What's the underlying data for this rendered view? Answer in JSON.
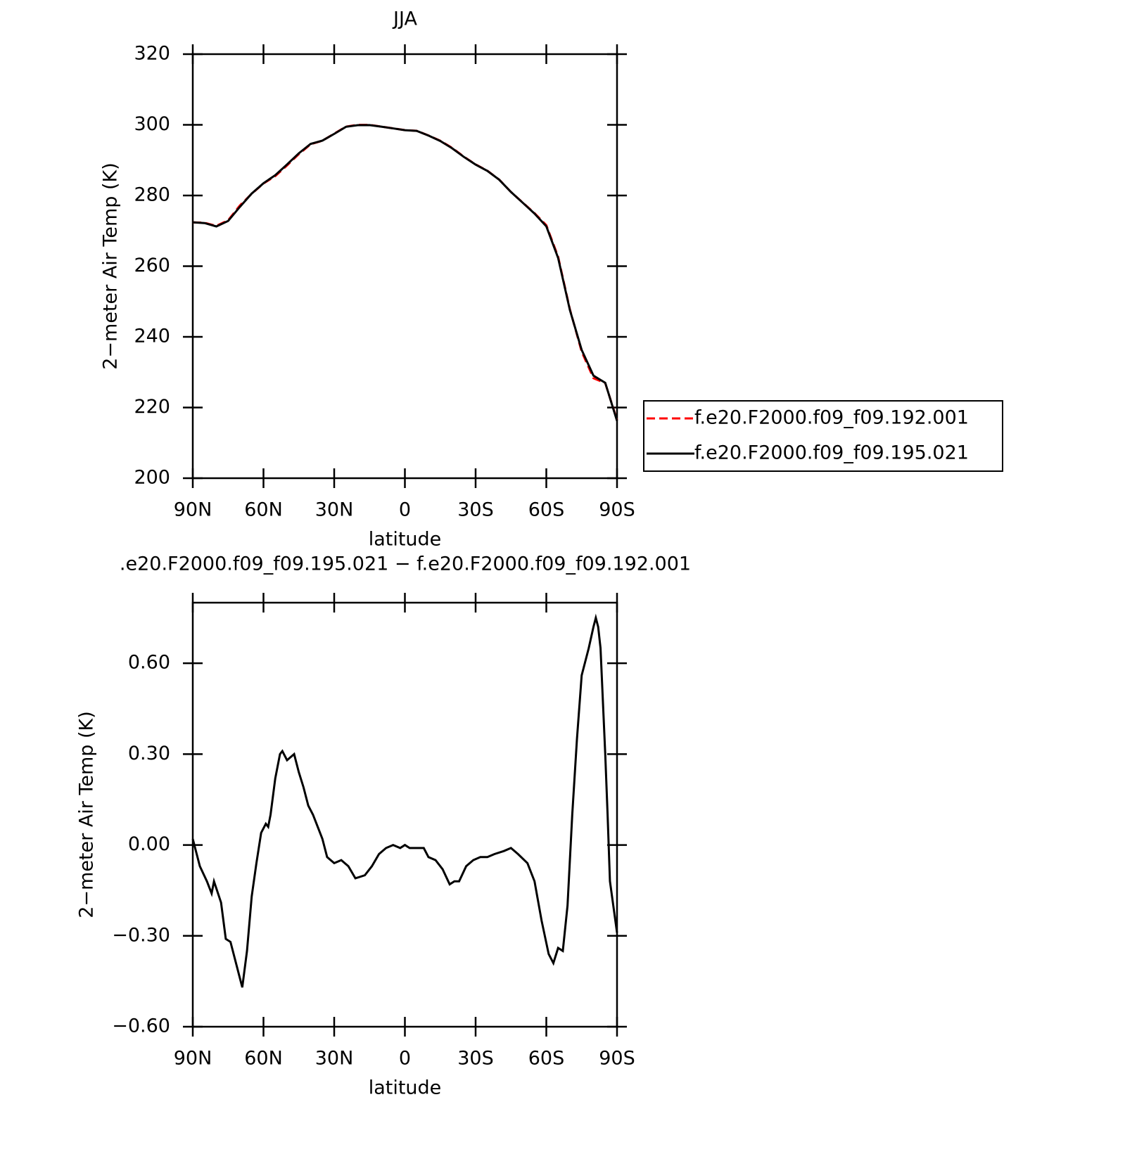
{
  "chart_data": [
    {
      "type": "line",
      "title": "JJA",
      "xlabel": "latitude",
      "ylabel": "2−meter Air Temp (K)",
      "x": [
        90,
        85,
        80,
        75,
        70,
        65,
        60,
        55,
        50,
        45,
        40,
        35,
        30,
        25,
        20,
        15,
        10,
        5,
        0,
        -5,
        -10,
        -15,
        -20,
        -25,
        -30,
        -35,
        -40,
        -45,
        -50,
        -55,
        -60,
        -65,
        -70,
        -75,
        -80,
        -85,
        -90
      ],
      "xlim": [
        90,
        -90
      ],
      "xticks": [
        {
          "value": 90,
          "label": "90N"
        },
        {
          "value": 60,
          "label": "60N"
        },
        {
          "value": 30,
          "label": "30N"
        },
        0,
        {
          "value": -30,
          "label": "30S"
        },
        {
          "value": -60,
          "label": "60S"
        },
        {
          "value": -90,
          "label": "90S"
        }
      ],
      "ylim": [
        200,
        320
      ],
      "yticks": [
        200,
        220,
        240,
        260,
        280,
        300,
        320
      ],
      "legend": "right",
      "series": [
        {
          "name": "f.e20.F2000.f09_f09.192.001",
          "color": "#ff0000",
          "dash": "dashed",
          "values": [
            272.4,
            272.3,
            271.4,
            273,
            277.2,
            280.5,
            283.4,
            285.5,
            288.5,
            291.7,
            294.5,
            295.5,
            297.5,
            299.5,
            300,
            300,
            299.5,
            299,
            298.5,
            298.3,
            297,
            295.5,
            293.5,
            291,
            288.8,
            287,
            284.5,
            281,
            278,
            275,
            271.6,
            262.7,
            247.8,
            235.8,
            228.3,
            226.9,
            216.5
          ]
        },
        {
          "name": "f.e20.F2000.f09_f09.195.021",
          "color": "#000000",
          "dash": "solid",
          "values": [
            272.42,
            272.2,
            271.25,
            272.8,
            276.8,
            280.55,
            283.47,
            285.75,
            288.78,
            291.95,
            294.6,
            295.53,
            297.44,
            299.44,
            299.9,
            299.92,
            299.47,
            298.99,
            298.49,
            298.29,
            296.96,
            295.43,
            293.38,
            290.93,
            288.75,
            286.96,
            284.47,
            280.99,
            277.95,
            274.88,
            271.28,
            262.35,
            247.6,
            236.3,
            229.02,
            227,
            216.22
          ]
        }
      ]
    },
    {
      "type": "line",
      "title": ".e20.F2000.f09_f09.195.021 − f.e20.F2000.f09_f09.192.001",
      "xlabel": "latitude",
      "ylabel": "2−meter Air Temp (K)",
      "x": [
        90,
        87,
        84,
        82,
        81,
        78,
        76,
        74,
        72,
        69,
        67,
        65,
        63,
        61,
        59,
        58,
        57,
        55,
        53,
        52,
        50,
        47,
        45,
        43,
        41,
        39,
        37,
        35,
        33,
        30,
        27,
        24,
        21,
        17,
        14,
        11,
        8,
        5,
        2,
        0,
        -2,
        -5,
        -8,
        -10,
        -13,
        -16,
        -19,
        -21,
        -23,
        -26,
        -29,
        -32,
        -35,
        -38,
        -42,
        -45,
        -48,
        -52,
        -55,
        -58,
        -61,
        -63,
        -65,
        -67,
        -69,
        -71,
        -73,
        -75,
        -76,
        -78,
        -80,
        -81,
        -82,
        -83,
        -85,
        -86,
        -87,
        -90
      ],
      "xlim": [
        90,
        -90
      ],
      "xticks": [
        {
          "value": 90,
          "label": "90N"
        },
        {
          "value": 60,
          "label": "60N"
        },
        {
          "value": 30,
          "label": "30N"
        },
        0,
        {
          "value": -30,
          "label": "30S"
        },
        {
          "value": -60,
          "label": "60S"
        },
        {
          "value": -90,
          "label": "90S"
        }
      ],
      "ylim": [
        -0.6,
        0.8
      ],
      "yticks": [
        {
          "value": -0.6,
          "label": "−0.60"
        },
        {
          "value": -0.3,
          "label": "−0.30"
        },
        {
          "value": 0,
          "label": "0.00"
        },
        {
          "value": 0.3,
          "label": "0.30"
        },
        {
          "value": 0.6,
          "label": "0.60"
        }
      ],
      "series": [
        {
          "color": "#000000",
          "values": [
            0.02,
            -0.07,
            -0.12,
            -0.16,
            -0.12,
            -0.19,
            -0.31,
            -0.32,
            -0.38,
            -0.47,
            -0.35,
            -0.17,
            -0.06,
            0.04,
            0.07,
            0.06,
            0.1,
            0.22,
            0.3,
            0.31,
            0.28,
            0.3,
            0.24,
            0.19,
            0.13,
            0.1,
            0.06,
            0.02,
            -0.04,
            -0.06,
            -0.05,
            -0.07,
            -0.11,
            -0.1,
            -0.07,
            -0.03,
            -0.01,
            0,
            -0.01,
            0,
            -0.01,
            -0.01,
            -0.01,
            -0.04,
            -0.05,
            -0.08,
            -0.13,
            -0.12,
            -0.12,
            -0.07,
            -0.05,
            -0.04,
            -0.04,
            -0.03,
            -0.02,
            -0.01,
            -0.03,
            -0.06,
            -0.12,
            -0.25,
            -0.36,
            -0.39,
            -0.34,
            -0.35,
            -0.2,
            0.1,
            0.35,
            0.56,
            0.59,
            0.65,
            0.72,
            0.75,
            0.72,
            0.65,
            0.3,
            0.1,
            -0.12,
            -0.29
          ]
        }
      ]
    }
  ]
}
